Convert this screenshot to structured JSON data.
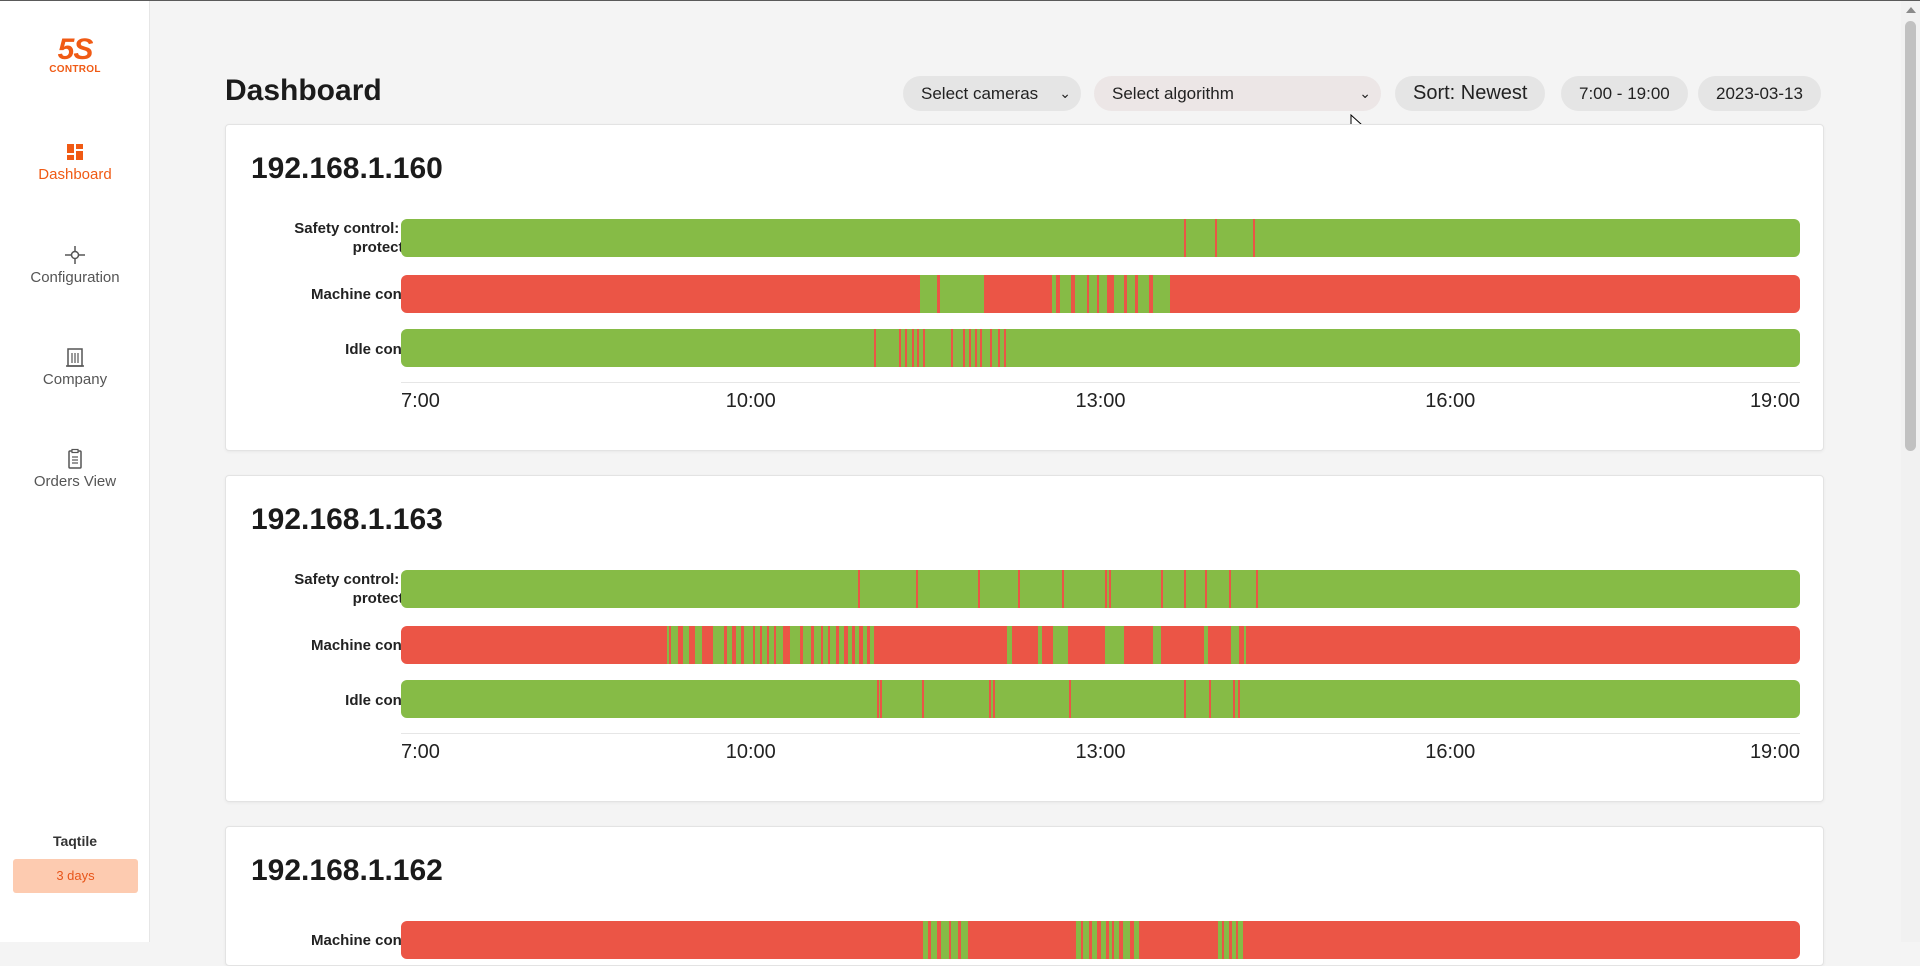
{
  "brand": {
    "logo_big": "5S",
    "logo_small": "CONTROL",
    "accent": "#f05a14"
  },
  "sidebar": {
    "items": [
      {
        "label": "Dashboard",
        "icon": "dashboard-icon",
        "active": true
      },
      {
        "label": "Configuration",
        "icon": "configuration-icon",
        "active": false
      },
      {
        "label": "Company",
        "icon": "building-icon",
        "active": false
      },
      {
        "label": "Orders View",
        "icon": "clipboard-icon",
        "active": false
      }
    ],
    "user": "Taqtile",
    "trial": "3 days"
  },
  "header": {
    "title": "Dashboard",
    "select_cameras": "Select cameras",
    "select_algorithm": "Select algorithm",
    "sort": "Sort: Newest",
    "time_range": "7:00 - 19:00",
    "date": "2023-03-13"
  },
  "colors": {
    "ok": "#86bb46",
    "violation": "#eb5546"
  },
  "timeline": {
    "start_hour": 7,
    "end_hour": 19,
    "ticks": [
      "7:00",
      "10:00",
      "13:00",
      "16:00",
      "19:00"
    ]
  },
  "cameras": [
    {
      "name": "192.168.1.160",
      "rows": [
        {
          "label": "Safety control: ear protection",
          "base": "ok",
          "marks": [
            13.72,
            13.98,
            14.31
          ]
        },
        {
          "label": "Machine control",
          "base": "violation",
          "green": [
            [
              11.45,
              11.6
            ],
            [
              11.62,
              12.0
            ],
            [
              12.58,
              12.62
            ],
            [
              12.65,
              12.75
            ],
            [
              12.78,
              12.88
            ],
            [
              12.9,
              12.97
            ],
            [
              12.99,
              13.06
            ],
            [
              13.12,
              13.2
            ],
            [
              13.23,
              13.3
            ],
            [
              13.32,
              13.42
            ],
            [
              13.45,
              13.6
            ]
          ]
        },
        {
          "label": "Idle control",
          "base": "ok",
          "marks": [
            11.06,
            11.27,
            11.32,
            11.38,
            11.43,
            11.48,
            11.72,
            11.82,
            11.87,
            11.92,
            11.97,
            12.05,
            12.12,
            12.17
          ]
        }
      ]
    },
    {
      "name": "192.168.1.163",
      "rows": [
        {
          "label": "Safety control: ear protection",
          "base": "ok",
          "marks": [
            10.92,
            11.42,
            11.95,
            12.29,
            12.67,
            13.04,
            13.07,
            13.52,
            13.72,
            13.9,
            14.1,
            14.33
          ]
        },
        {
          "label": "Machine control",
          "base": "violation",
          "green": [
            [
              9.28,
              9.3
            ],
            [
              9.32,
              9.38
            ],
            [
              9.42,
              9.47
            ],
            [
              9.52,
              9.58
            ],
            [
              9.68,
              9.77
            ],
            [
              9.8,
              9.84
            ],
            [
              9.87,
              9.92
            ],
            [
              9.94,
              10.02
            ],
            [
              10.04,
              10.08
            ],
            [
              10.1,
              10.14
            ],
            [
              10.16,
              10.2
            ],
            [
              10.22,
              10.28
            ],
            [
              10.34,
              10.42
            ],
            [
              10.45,
              10.52
            ],
            [
              10.54,
              10.6
            ],
            [
              10.62,
              10.66
            ],
            [
              10.68,
              10.73
            ],
            [
              10.76,
              10.8
            ],
            [
              10.83,
              10.87
            ],
            [
              10.89,
              10.93
            ],
            [
              10.96,
              11.0
            ],
            [
              11.02,
              11.06
            ],
            [
              12.2,
              12.24
            ],
            [
              12.46,
              12.5
            ],
            [
              12.59,
              12.72
            ],
            [
              13.04,
              13.2
            ],
            [
              13.45,
              13.52
            ],
            [
              13.89,
              13.92
            ],
            [
              14.12,
              14.19
            ],
            [
              14.23,
              14.25
            ]
          ]
        },
        {
          "label": "Idle control",
          "base": "ok",
          "marks": [
            11.08,
            11.11,
            11.47,
            12.04,
            12.08,
            12.73,
            13.72,
            13.93,
            14.14,
            14.18
          ]
        }
      ]
    },
    {
      "name": "192.168.1.162",
      "rows": [
        {
          "label": "Machine control",
          "base": "violation",
          "green": [
            [
              11.48,
              11.52
            ],
            [
              11.55,
              11.6
            ],
            [
              11.63,
              11.7
            ],
            [
              11.72,
              11.78
            ],
            [
              11.8,
              11.86
            ],
            [
              12.79,
              12.83
            ],
            [
              12.85,
              12.9
            ],
            [
              12.93,
              12.97
            ],
            [
              13.0,
              13.05
            ],
            [
              13.07,
              13.1
            ],
            [
              13.12,
              13.16
            ],
            [
              13.19,
              13.25
            ],
            [
              13.29,
              13.33
            ],
            [
              14.01,
              14.04
            ],
            [
              14.06,
              14.1
            ],
            [
              14.13,
              14.16
            ],
            [
              14.18,
              14.22
            ]
          ]
        }
      ]
    }
  ]
}
